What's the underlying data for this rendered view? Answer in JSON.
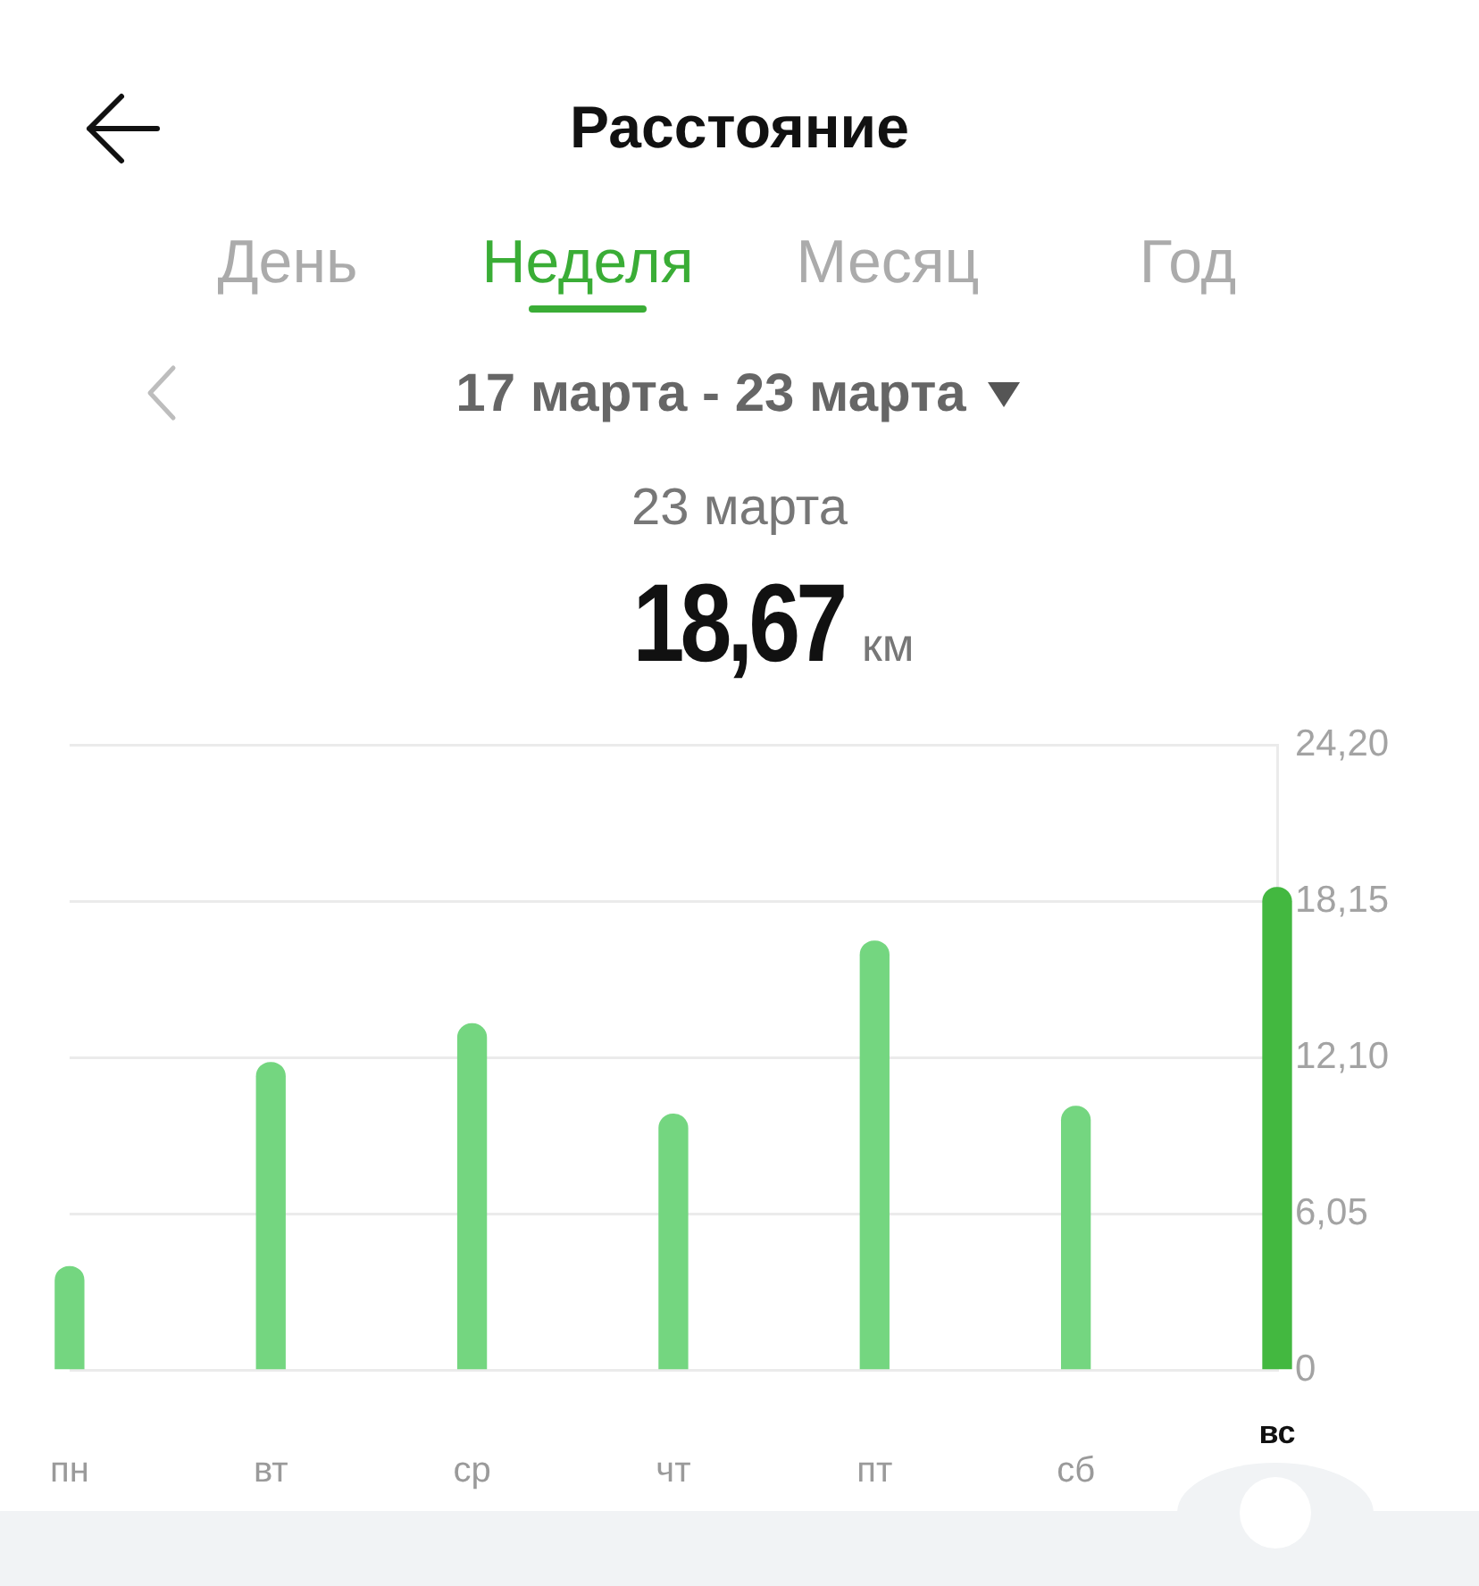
{
  "chart_data": {
    "type": "bar",
    "title": "Расстояние",
    "subtitle": "17 марта - 23 марта",
    "annotations": [
      "День",
      "Неделя",
      "Месяц",
      "Год",
      "23 марта",
      "18,67 км"
    ],
    "categories": [
      "пн",
      "вт",
      "ср",
      "чт",
      "пт",
      "сб",
      "вс"
    ],
    "values": [
      4.0,
      11.9,
      13.4,
      9.9,
      16.6,
      10.2,
      18.67
    ],
    "colors": [
      "#74d680",
      "#74d680",
      "#74d680",
      "#74d680",
      "#74d680",
      "#74d680",
      "#43b840"
    ],
    "ylim": [
      0,
      24.2
    ],
    "yticks": [
      0,
      {
        "value": 6.05,
        "label": "6,05"
      },
      {
        "value": 12.1,
        "label": "12,10"
      },
      {
        "value": 18.15,
        "label": "18,15"
      },
      {
        "value": 24.2,
        "label": "24,20"
      }
    ],
    "grid": "y"
  }
}
